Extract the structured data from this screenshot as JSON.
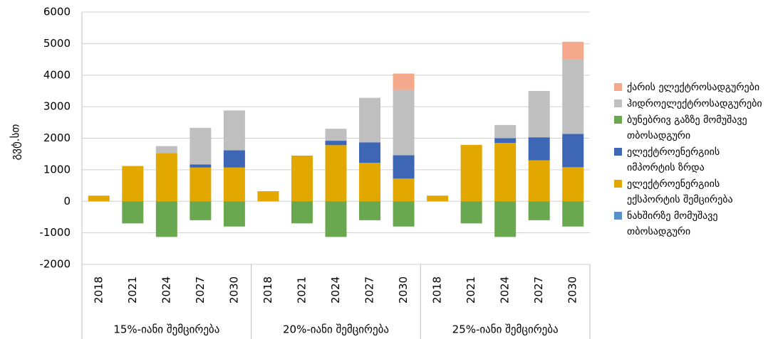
{
  "chart_data": {
    "type": "stacked-bar",
    "y_label": "გვტ.სთ",
    "categories": [
      "2018",
      "2021",
      "2024",
      "2027",
      "2030",
      "2018",
      "2021",
      "2024",
      "2027",
      "2030",
      "2018",
      "2021",
      "2024",
      "2027",
      "2030"
    ],
    "groups": [
      "15%-იანი შემცირება",
      "20%-იანი შემცირება",
      "25%-იანი შემცირება"
    ],
    "series": [
      {
        "name": "ქარის ელექტროსადგურები",
        "color": "#f4a88c",
        "values": [
          0,
          0,
          0,
          0,
          0,
          0,
          0,
          0,
          0,
          520,
          0,
          0,
          0,
          0,
          550
        ]
      },
      {
        "name": "ჰიდროელექტროსადგურები",
        "color": "#bfbfbf",
        "values": [
          0,
          0,
          220,
          1160,
          1260,
          0,
          0,
          380,
          1410,
          2070,
          0,
          0,
          420,
          1470,
          2370
        ]
      },
      {
        "name": "ბუნებრივ გაზზე მომუშავე თბოსადგური",
        "color": "#6aa84f",
        "values": [
          0,
          -700,
          -1130,
          -600,
          -800,
          0,
          -700,
          -1130,
          -600,
          -800,
          0,
          -700,
          -1130,
          -600,
          -800
        ]
      },
      {
        "name": "ელექტროენერგიის იმპორტის ზრდა",
        "color": "#3d66b5",
        "values": [
          0,
          0,
          0,
          100,
          550,
          0,
          0,
          140,
          650,
          740,
          0,
          0,
          150,
          730,
          1060
        ]
      },
      {
        "name": "ელექტროენერგიის ექსპორტის შემცირება",
        "color": "#e2a800",
        "values": [
          180,
          1120,
          1530,
          1070,
          1070,
          320,
          1450,
          1780,
          1220,
          720,
          180,
          1790,
          1850,
          1300,
          1080
        ]
      },
      {
        "name": "ნახშირზე მომუშავე თბოსადგური",
        "color": "#5b8fc7",
        "values": [
          0,
          0,
          0,
          0,
          0,
          0,
          0,
          0,
          0,
          0,
          0,
          0,
          0,
          0,
          0
        ]
      }
    ],
    "ylim": [
      -2000,
      6000
    ],
    "yticks": [
      -2000,
      -1000,
      0,
      1000,
      2000,
      3000,
      4000,
      5000,
      6000
    ],
    "grid": true
  }
}
